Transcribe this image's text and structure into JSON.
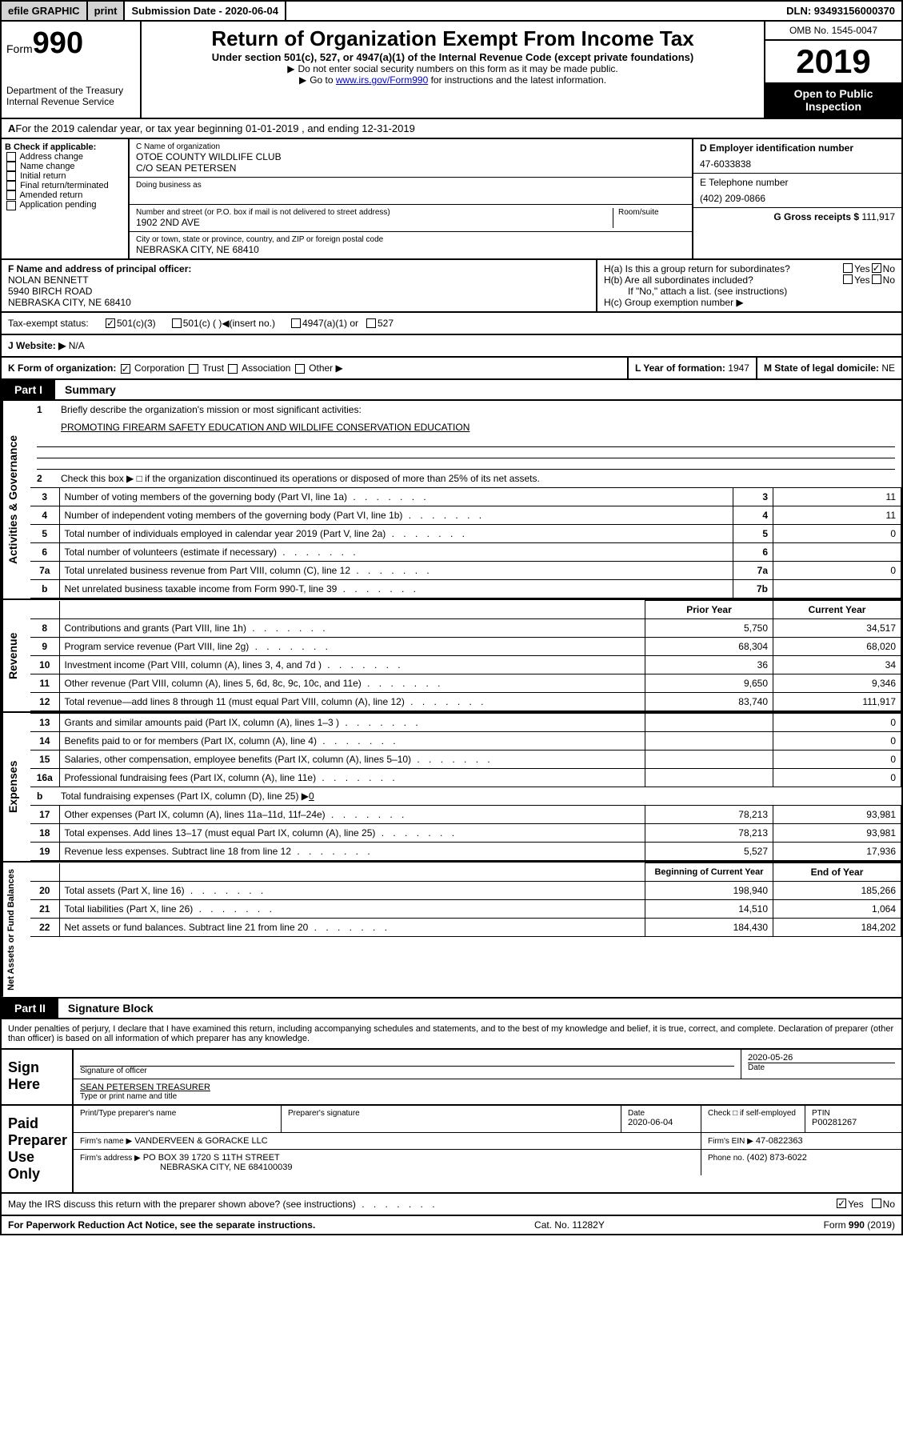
{
  "top": {
    "efile": "efile GRAPHIC",
    "print": "print",
    "sub_date_label": "Submission Date - 2020-06-04",
    "dln": "DLN: 93493156000370"
  },
  "header": {
    "form_label": "Form",
    "form_num": "990",
    "dept": "Department of the Treasury",
    "service": "Internal Revenue Service",
    "title": "Return of Organization Exempt From Income Tax",
    "sub": "Under section 501(c), 527, or 4947(a)(1) of the Internal Revenue Code (except private foundations)",
    "sub2a": "Do not enter social security numbers on this form as it may be made public.",
    "sub2b_pre": "Go to ",
    "sub2b_link": "www.irs.gov/Form990",
    "sub2b_post": " for instructions and the latest information.",
    "omb": "OMB No. 1545-0047",
    "year": "2019",
    "open": "Open to Public Inspection"
  },
  "period": "For the 2019 calendar year, or tax year beginning 01-01-2019    , and ending 12-31-2019",
  "b": {
    "label": "B Check if applicable:",
    "addr": "Address change",
    "name": "Name change",
    "init": "Initial return",
    "final": "Final return/terminated",
    "amend": "Amended return",
    "app": "Application pending"
  },
  "c": {
    "name_label": "C Name of organization",
    "name": "OTOE COUNTY WILDLIFE CLUB",
    "co": "C/O SEAN PETERSEN",
    "dba_label": "Doing business as",
    "addr_label": "Number and street (or P.O. box if mail is not delivered to street address)",
    "addr": "1902 2ND AVE",
    "room_label": "Room/suite",
    "city_label": "City or town, state or province, country, and ZIP or foreign postal code",
    "city": "NEBRASKA CITY, NE  68410"
  },
  "d": {
    "label": "D Employer identification number",
    "ein": "47-6033838",
    "tel_label": "E Telephone number",
    "tel": "(402) 209-0866",
    "gross_label": "G Gross receipts $ ",
    "gross": "111,917"
  },
  "f": {
    "label": "F  Name and address of principal officer:",
    "name": "NOLAN BENNETT",
    "addr1": "5940 BIRCH ROAD",
    "addr2": "NEBRASKA CITY, NE  68410"
  },
  "h": {
    "a": "H(a)  Is this a group return for subordinates?",
    "b": "H(b)  Are all subordinates included?",
    "attach": "If \"No,\" attach a list. (see instructions)",
    "c": "H(c)  Group exemption number ▶",
    "yes": "Yes",
    "no": "No"
  },
  "tax": {
    "label": "Tax-exempt status:",
    "opt1": "501(c)(3)",
    "opt2": "501(c) (  )",
    "insert": "(insert no.)",
    "opt3": "4947(a)(1) or",
    "opt4": "527"
  },
  "website": {
    "label": "J  Website: ▶ ",
    "val": "N/A"
  },
  "k": {
    "label": "K Form of organization:",
    "corp": "Corporation",
    "trust": "Trust",
    "assoc": "Association",
    "other": "Other ▶"
  },
  "l": {
    "label": "L Year of formation: ",
    "val": "1947"
  },
  "m": {
    "label": "M State of legal domicile: ",
    "val": "NE"
  },
  "part1": {
    "header": "Part I",
    "title": "Summary"
  },
  "summary": {
    "gov_label": "Activities & Governance",
    "line1": "Briefly describe the organization's mission or most significant activities:",
    "mission": "PROMOTING FIREARM SAFETY EDUCATION AND WILDLIFE CONSERVATION EDUCATION",
    "line2": "Check this box ▶ □  if the organization discontinued its operations or disposed of more than 25% of its net assets.",
    "lines_gov": [
      {
        "n": "3",
        "txt": "Number of voting members of the governing body (Part VI, line 1a)",
        "box": "3",
        "val": "11"
      },
      {
        "n": "4",
        "txt": "Number of independent voting members of the governing body (Part VI, line 1b)",
        "box": "4",
        "val": "11"
      },
      {
        "n": "5",
        "txt": "Total number of individuals employed in calendar year 2019 (Part V, line 2a)",
        "box": "5",
        "val": "0"
      },
      {
        "n": "6",
        "txt": "Total number of volunteers (estimate if necessary)",
        "box": "6",
        "val": ""
      },
      {
        "n": "7a",
        "txt": "Total unrelated business revenue from Part VIII, column (C), line 12",
        "box": "7a",
        "val": "0"
      },
      {
        "n": "b",
        "txt": "Net unrelated business taxable income from Form 990-T, line 39",
        "box": "7b",
        "val": ""
      }
    ],
    "rev_label": "Revenue",
    "prior": "Prior Year",
    "current": "Current Year",
    "rev_lines": [
      {
        "n": "8",
        "txt": "Contributions and grants (Part VIII, line 1h)",
        "p": "5,750",
        "c": "34,517"
      },
      {
        "n": "9",
        "txt": "Program service revenue (Part VIII, line 2g)",
        "p": "68,304",
        "c": "68,020"
      },
      {
        "n": "10",
        "txt": "Investment income (Part VIII, column (A), lines 3, 4, and 7d )",
        "p": "36",
        "c": "34"
      },
      {
        "n": "11",
        "txt": "Other revenue (Part VIII, column (A), lines 5, 6d, 8c, 9c, 10c, and 11e)",
        "p": "9,650",
        "c": "9,346"
      },
      {
        "n": "12",
        "txt": "Total revenue—add lines 8 through 11 (must equal Part VIII, column (A), line 12)",
        "p": "83,740",
        "c": "111,917"
      }
    ],
    "exp_label": "Expenses",
    "exp_lines": [
      {
        "n": "13",
        "txt": "Grants and similar amounts paid (Part IX, column (A), lines 1–3 )",
        "p": "",
        "c": "0"
      },
      {
        "n": "14",
        "txt": "Benefits paid to or for members (Part IX, column (A), line 4)",
        "p": "",
        "c": "0"
      },
      {
        "n": "15",
        "txt": "Salaries, other compensation, employee benefits (Part IX, column (A), lines 5–10)",
        "p": "",
        "c": "0"
      },
      {
        "n": "16a",
        "txt": "Professional fundraising fees (Part IX, column (A), line 11e)",
        "p": "",
        "c": "0"
      }
    ],
    "line16b_pre": "Total fundraising expenses (Part IX, column (D), line 25) ▶",
    "line16b_val": "0",
    "exp_lines2": [
      {
        "n": "17",
        "txt": "Other expenses (Part IX, column (A), lines 11a–11d, 11f–24e)",
        "p": "78,213",
        "c": "93,981"
      },
      {
        "n": "18",
        "txt": "Total expenses. Add lines 13–17 (must equal Part IX, column (A), line 25)",
        "p": "78,213",
        "c": "93,981"
      },
      {
        "n": "19",
        "txt": "Revenue less expenses. Subtract line 18 from line 12",
        "p": "5,527",
        "c": "17,936"
      }
    ],
    "net_label": "Net Assets or Fund Balances",
    "begin": "Beginning of Current Year",
    "end": "End of Year",
    "net_lines": [
      {
        "n": "20",
        "txt": "Total assets (Part X, line 16)",
        "p": "198,940",
        "c": "185,266"
      },
      {
        "n": "21",
        "txt": "Total liabilities (Part X, line 26)",
        "p": "14,510",
        "c": "1,064"
      },
      {
        "n": "22",
        "txt": "Net assets or fund balances. Subtract line 21 from line 20",
        "p": "184,430",
        "c": "184,202"
      }
    ]
  },
  "part2": {
    "header": "Part II",
    "title": "Signature Block"
  },
  "sig": {
    "perjury": "Under penalties of perjury, I declare that I have examined this return, including accompanying schedules and statements, and to the best of my knowledge and belief, it is true, correct, and complete. Declaration of preparer (other than officer) is based on all information of which preparer has any knowledge.",
    "sign_here": "Sign Here",
    "sig_officer": "Signature of officer",
    "date_label": "Date",
    "date": "2020-05-26",
    "name_title": "SEAN PETERSEN  TREASURER",
    "type_name": "Type or print name and title",
    "paid": "Paid Preparer Use Only",
    "prep_name_label": "Print/Type preparer's name",
    "prep_sig_label": "Preparer's signature",
    "prep_date": "2020-06-04",
    "check_if": "Check □ if self-employed",
    "ptin_label": "PTIN",
    "ptin": "P00281267",
    "firm_name_label": "Firm's name    ▶",
    "firm_name": "VANDERVEEN & GORACKE LLC",
    "firm_ein_label": "Firm's EIN ▶",
    "firm_ein": "47-0822363",
    "firm_addr_label": "Firm's address ▶",
    "firm_addr1": "PO BOX 39 1720 S 11TH STREET",
    "firm_addr2": "NEBRASKA CITY, NE  684100039",
    "phone_label": "Phone no.",
    "phone": "(402) 873-6022"
  },
  "may_irs": "May the IRS discuss this return with the preparer shown above? (see instructions)",
  "footer": {
    "paperwork": "For Paperwork Reduction Act Notice, see the separate instructions.",
    "cat": "Cat. No. 11282Y",
    "form": "Form 990 (2019)"
  }
}
